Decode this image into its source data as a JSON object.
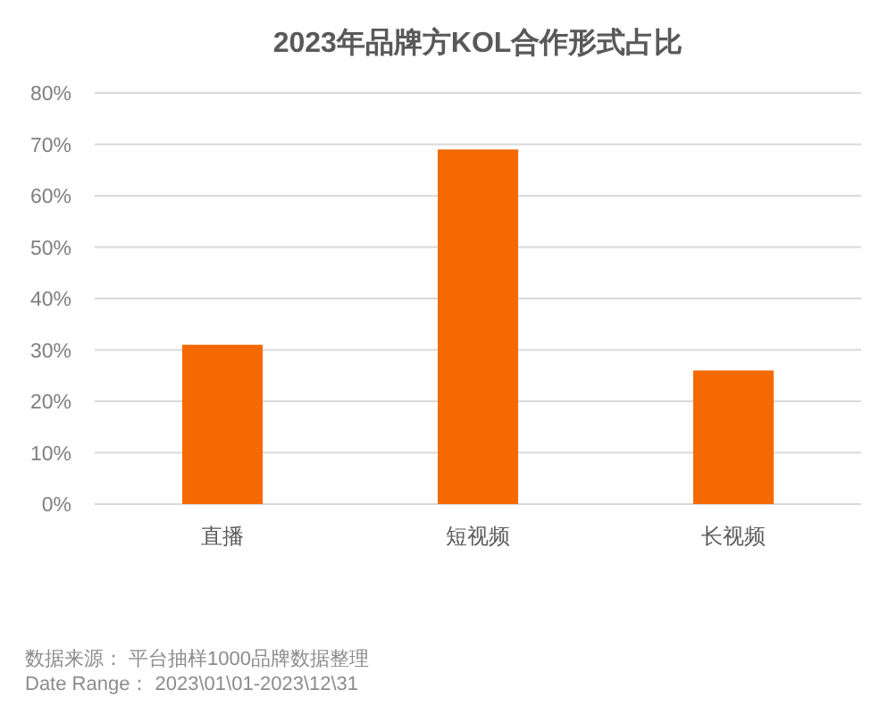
{
  "chart_data": {
    "type": "bar",
    "title": "2023年品牌方KOL合作形式占比",
    "categories": [
      "直播",
      "短视频",
      "长视频"
    ],
    "values": [
      31,
      69,
      26
    ],
    "color": "#f46a00",
    "ylim": [
      0,
      80
    ],
    "yticks": [
      {
        "value": 0,
        "label": "0%"
      },
      {
        "value": 10,
        "label": "10%"
      },
      {
        "value": 20,
        "label": "20%"
      },
      {
        "value": 30,
        "label": "30%"
      },
      {
        "value": 40,
        "label": "40%"
      },
      {
        "value": 50,
        "label": "50%"
      },
      {
        "value": 60,
        "label": "60%"
      },
      {
        "value": 70,
        "label": "70%"
      },
      {
        "value": 80,
        "label": "80%"
      }
    ],
    "grid": "y",
    "annotations": [
      "数据来源： 平台抽样1000品牌数据整理",
      "Date Range： 2023\\01\\01-2023\\12\\31"
    ]
  }
}
